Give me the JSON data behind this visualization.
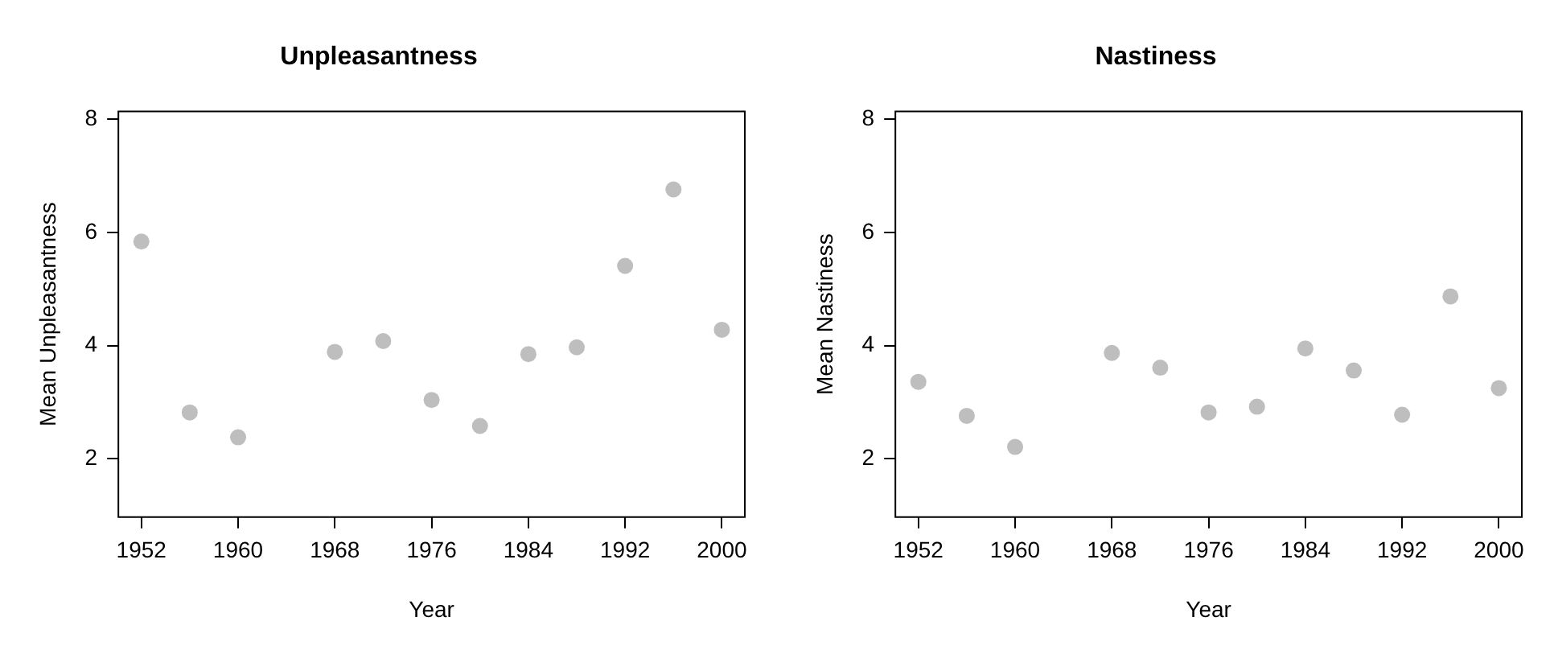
{
  "chart_data": [
    {
      "type": "scatter",
      "title": "Unpleasantness",
      "xlabel": "Year",
      "ylabel": "Mean Unpleasantness",
      "marker": "circle",
      "color": "#bebebe",
      "x": [
        1952,
        1956,
        1960,
        1968,
        1972,
        1976,
        1980,
        1984,
        1988,
        1992,
        1996,
        2000
      ],
      "values": [
        5.84,
        2.82,
        2.38,
        3.89,
        4.08,
        3.04,
        2.58,
        3.85,
        3.97,
        5.41,
        6.76,
        4.28
      ],
      "xlim": [
        1950.1,
        2001.9
      ],
      "xticks": [
        1952,
        1960,
        1968,
        1976,
        1984,
        1992,
        2000
      ],
      "ylim": [
        0.97,
        8.14
      ],
      "yticks": [
        2,
        4,
        6,
        8
      ]
    },
    {
      "type": "scatter",
      "title": "Nastiness",
      "xlabel": "Year",
      "ylabel": "Mean Nastiness",
      "marker": "circle",
      "color": "#bebebe",
      "x": [
        1952,
        1956,
        1960,
        1968,
        1972,
        1976,
        1980,
        1984,
        1988,
        1992,
        1996,
        2000
      ],
      "values": [
        3.36,
        2.76,
        2.21,
        3.87,
        3.61,
        2.82,
        2.92,
        3.95,
        3.56,
        2.78,
        4.87,
        3.25
      ],
      "xlim": [
        1950.1,
        2001.9
      ],
      "xticks": [
        1952,
        1960,
        1968,
        1976,
        1984,
        1992,
        2000
      ],
      "ylim": [
        0.97,
        8.14
      ],
      "yticks": [
        2,
        4,
        6,
        8
      ]
    }
  ]
}
